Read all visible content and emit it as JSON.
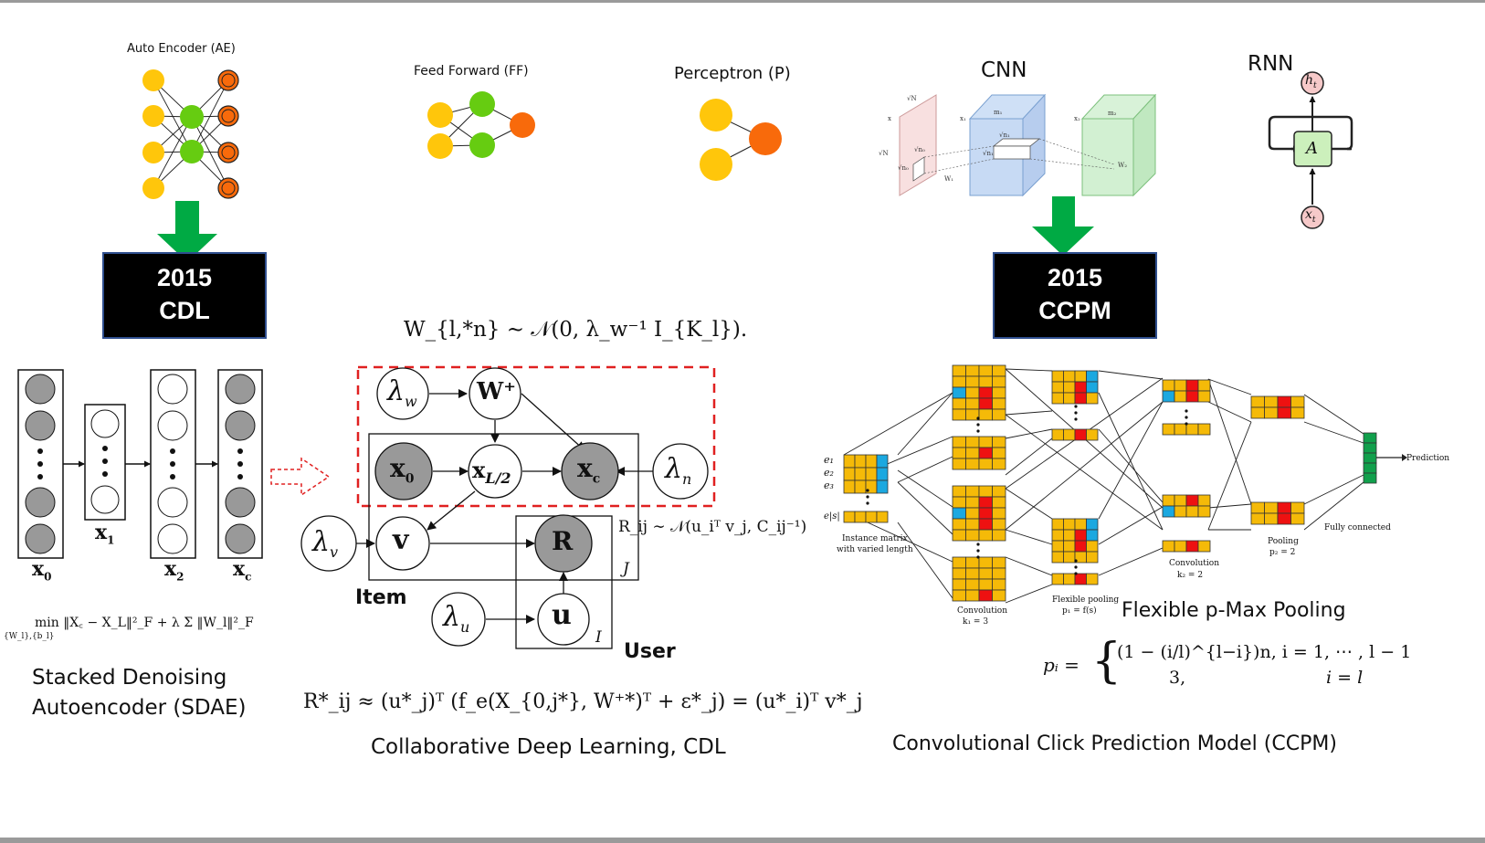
{
  "labels": {
    "ae_title": "Auto Encoder (AE)",
    "ff_title": "Feed Forward (FF)",
    "perceptron_title": "Perceptron (P)",
    "cnn_title": "CNN",
    "rnn_title": "RNN",
    "rnn_h": "h",
    "rnn_h_sub": "t",
    "rnn_a": "A",
    "rnn_x": "x",
    "rnn_x_sub": "t"
  },
  "boxes": {
    "cdl": {
      "year": "2015",
      "name": "CDL"
    },
    "ccpm": {
      "year": "2015",
      "name": "CCPM"
    }
  },
  "sdae": {
    "x0": "x",
    "x0_sub": "0",
    "x1": "x",
    "x1_sub": "1",
    "x2": "x",
    "x2_sub": "2",
    "xc": "x",
    "xc_sub": "c",
    "formula": "min ‖X꜀ − X_L‖²_F + λ Σ ‖W_l‖²_F",
    "formula_sub": "{W_l},{b_l}",
    "caption_line1": "Stacked Denoising",
    "caption_line2": "Autoencoder (SDAE)"
  },
  "cdl_diagram": {
    "prior": "W_{l,*n} ∼ 𝒩(0, λ_w⁻¹ I_{K_l}).",
    "lambda_w": "λ",
    "lambda_w_sub": "w",
    "w_plus": "W⁺",
    "x0": "x",
    "x0_sub": "0",
    "xl2": "x",
    "xl2_sub": "L/2",
    "xc": "x",
    "xc_sub": "c",
    "lambda_n": "λ",
    "lambda_n_sub": "n",
    "lambda_v": "λ",
    "lambda_v_sub": "v",
    "v": "v",
    "r": "R",
    "lambda_u": "λ",
    "lambda_u_sub": "u",
    "u": "u",
    "rij": "R_ij ∼ 𝒩(u_iᵀ v_j, C_ij⁻¹)",
    "plate_j": "J",
    "plate_i": "I",
    "item_label": "Item",
    "user_label": "User",
    "approx": "R*_ij ≈ (u*_j)ᵀ (f_e(X_{0,j*}, W⁺*)ᵀ + ε*_j) = (u*_i)ᵀ v*_j",
    "caption": "Collaborative Deep Learning, CDL"
  },
  "ccpm_diagram": {
    "e1": "e₁",
    "e2": "e₂",
    "e3": "e₃",
    "es": "e|s|",
    "instance_line1": "Instance matrix",
    "instance_line2": "with varied length",
    "conv1_line1": "Convolution",
    "conv1_line2": "k₁ = 3",
    "flex_line1": "Flexible pooling",
    "flex_line2": "p₁ = f(s)",
    "conv2_line1": "Convolution",
    "conv2_line2": "k₂ = 2",
    "pool_line1": "Pooling",
    "pool_line2": "p₂ = 2",
    "fully": "Fully connected",
    "prediction": "Prediction",
    "flex_title": "Flexible p-Max Pooling",
    "pi_lhs": "pᵢ =",
    "pi_case1": "(1 − (i/l)^{l−i})n,   i = 1, ⋯ , l − 1",
    "pi_case2": "3,",
    "pi_case2_cond": "i = l",
    "caption": "Convolutional Click Prediction Model (CCPM)"
  },
  "colors": {
    "yellow": "#FFC60B",
    "green": "#66CC11",
    "orange": "#F86A0B",
    "arrow_green": "#00AA44",
    "cell_yellow": "#F5BA08",
    "cell_red": "#EE1111",
    "cell_blue": "#1BA8E0",
    "cell_green": "#11A04C",
    "dash_red": "#E02020"
  }
}
